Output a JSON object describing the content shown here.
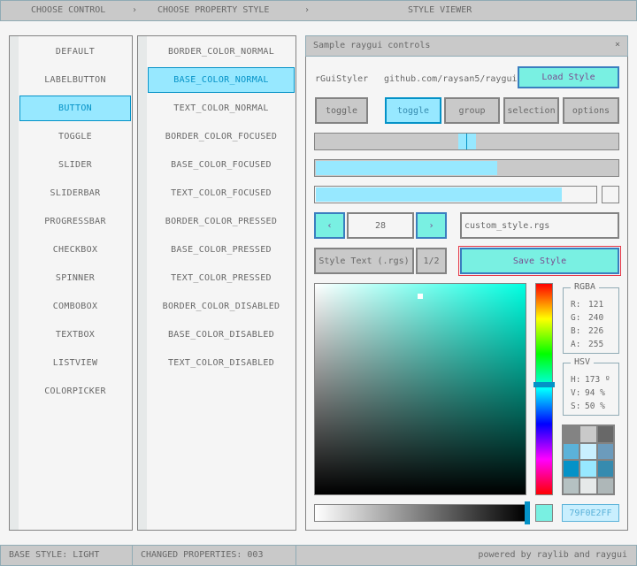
{
  "topbar": {
    "step1": "CHOOSE CONTROL",
    "sep1": "›",
    "step2": "CHOOSE PROPERTY STYLE",
    "sep2": "›",
    "step3": "STYLE VIEWER"
  },
  "controls": [
    "DEFAULT",
    "LABELBUTTON",
    "BUTTON",
    "TOGGLE",
    "SLIDER",
    "SLIDERBAR",
    "PROGRESSBAR",
    "CHECKBOX",
    "SPINNER",
    "COMBOBOX",
    "TEXTBOX",
    "LISTVIEW",
    "COLORPICKER"
  ],
  "controls_selected": 2,
  "properties": [
    "BORDER_COLOR_NORMAL",
    "BASE_COLOR_NORMAL",
    "TEXT_COLOR_NORMAL",
    "BORDER_COLOR_FOCUSED",
    "BASE_COLOR_FOCUSED",
    "TEXT_COLOR_FOCUSED",
    "BORDER_COLOR_PRESSED",
    "BASE_COLOR_PRESSED",
    "TEXT_COLOR_PRESSED",
    "BORDER_COLOR_DISABLED",
    "BASE_COLOR_DISABLED",
    "TEXT_COLOR_DISABLED"
  ],
  "properties_selected": 1,
  "window": {
    "title": "Sample raygui controls",
    "close": "×",
    "label1": "rGuiStyler",
    "label2": "github.com/raysan5/raygui",
    "load": "Load Style",
    "toggle": "toggle",
    "group": [
      "toggle",
      "group",
      "selection",
      "options"
    ],
    "group_active": 0,
    "slider_value": 0.5,
    "sliderbar_value": 0.6,
    "progress_value": 0.88,
    "checkbox_checked": false,
    "spinner": {
      "dec": "‹",
      "value": "28",
      "inc": "›"
    },
    "textbox": "custom_style.rgs",
    "combo": "Style Text (.rgs)",
    "combo_page": "1/2",
    "save": "Save Style"
  },
  "colorpicker": {
    "hue": 173,
    "sat": 0.5,
    "val": 0.94,
    "alpha": 1.0,
    "hex": "79F0E2FF",
    "color": "#79f0e2",
    "rgba": {
      "title": "RGBA",
      "r_label": "R:",
      "r": "121",
      "g_label": "G:",
      "g": "240",
      "b_label": "B:",
      "b": "226",
      "a_label": "A:",
      "a": "255"
    },
    "hsv": {
      "title": "HSV",
      "h_label": "H:",
      "h": "173 º",
      "v_label": "V:",
      "v": "94 %",
      "s_label": "S:",
      "s": "50 %"
    },
    "palette": [
      "#838383",
      "#c9c9c9",
      "#686868",
      "#5bb2d9",
      "#c9effe",
      "#6c9bbc",
      "#0492c7",
      "#97e8ff",
      "#368baf",
      "#b5c1c2",
      "#e6e9e9",
      "#aeb7b8"
    ]
  },
  "status": {
    "base": "BASE STYLE: LIGHT",
    "changed": "CHANGED PROPERTIES: 003",
    "powered": "powered by raylib and raygui"
  }
}
